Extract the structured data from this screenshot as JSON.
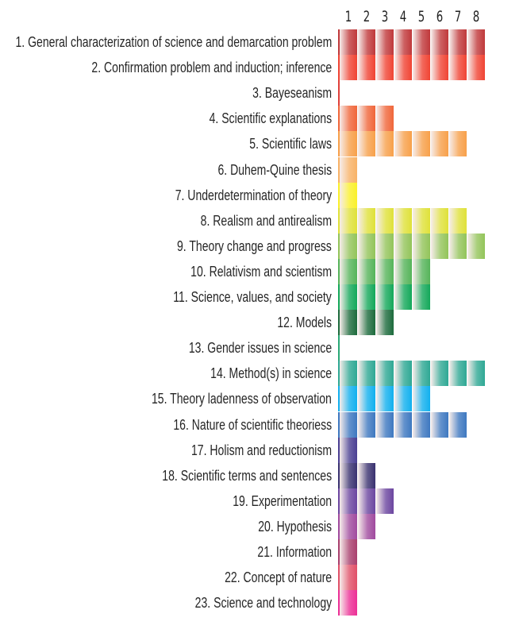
{
  "chart_data": {
    "type": "heatmap",
    "title": "",
    "xlabel": "",
    "ylabel": "",
    "columns": [
      "1",
      "2",
      "3",
      "4",
      "5",
      "6",
      "7",
      "8"
    ],
    "rows": [
      {
        "label": "1. General characterization of science and demarcation problem",
        "count": 8,
        "color": "#c0393b"
      },
      {
        "label": "2. Confirmation problem and induction; inference",
        "count": 8,
        "color": "#f04434"
      },
      {
        "label": "3. Bayeseanism",
        "count": 0,
        "color": "#e0403a"
      },
      {
        "label": "4. Scientific explanations",
        "count": 3,
        "color": "#f0663a"
      },
      {
        "label": "5. Scientific laws",
        "count": 7,
        "color": "#f7a04a"
      },
      {
        "label": "6. Duhem-Quine thesis",
        "count": 1,
        "color": "#f8b266"
      },
      {
        "label": "7. Underdetermination of theory",
        "count": 1,
        "color": "#faf02a"
      },
      {
        "label": "8. Realism and antirealism",
        "count": 7,
        "color": "#dfe13a"
      },
      {
        "label": "9. Theory change and progress",
        "count": 8,
        "color": "#93c45a"
      },
      {
        "label": "10. Relativism and scientism",
        "count": 5,
        "color": "#56b45a"
      },
      {
        "label": "11. Science, values, and society",
        "count": 5,
        "color": "#14a85a"
      },
      {
        "label": "12. Models",
        "count": 3,
        "color": "#1d6b3c"
      },
      {
        "label": "13. Gender issues in science",
        "count": 0,
        "color": "#2aa876"
      },
      {
        "label": "14. Method(s) in science",
        "count": 8,
        "color": "#2fa894"
      },
      {
        "label": "15. Theory ladenness of observation",
        "count": 5,
        "color": "#12b0ee"
      },
      {
        "label": "16. Nature of scientific theoriess",
        "count": 7,
        "color": "#3e78c0"
      },
      {
        "label": "17. Holism and reductionism",
        "count": 1,
        "color": "#4a3f92"
      },
      {
        "label": "18. Scientific terms and sentences",
        "count": 2,
        "color": "#3a3270"
      },
      {
        "label": "19. Experimentation",
        "count": 3,
        "color": "#6c46a0"
      },
      {
        "label": "20. Hypothesis",
        "count": 2,
        "color": "#a04a9e"
      },
      {
        "label": "21. Information",
        "count": 1,
        "color": "#a9406e"
      },
      {
        "label": "22. Concept of nature",
        "count": 1,
        "color": "#e05068"
      },
      {
        "label": "23. Science and technology",
        "count": 1,
        "color": "#ec2f96"
      }
    ],
    "grid": false,
    "legend": "none"
  }
}
